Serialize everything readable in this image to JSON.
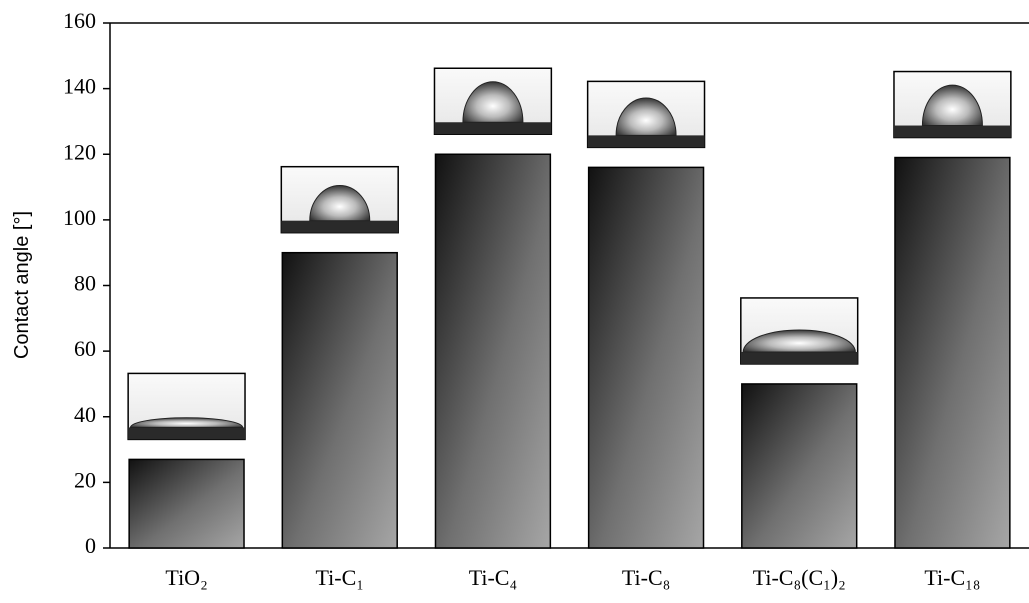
{
  "chart_data": {
    "type": "bar",
    "y_label": "Contact angle [°]",
    "categories": [
      "TiO₂",
      "Ti-C₁",
      "Ti-C₄",
      "Ti-C₈",
      "Ti-C₈(C₁)₂",
      "Ti-C₁₈"
    ],
    "values": [
      27,
      90,
      120,
      116,
      50,
      119
    ],
    "ylim": [
      0,
      160
    ],
    "yticks": [
      0,
      20,
      40,
      60,
      80,
      100,
      120,
      140,
      160
    ]
  }
}
